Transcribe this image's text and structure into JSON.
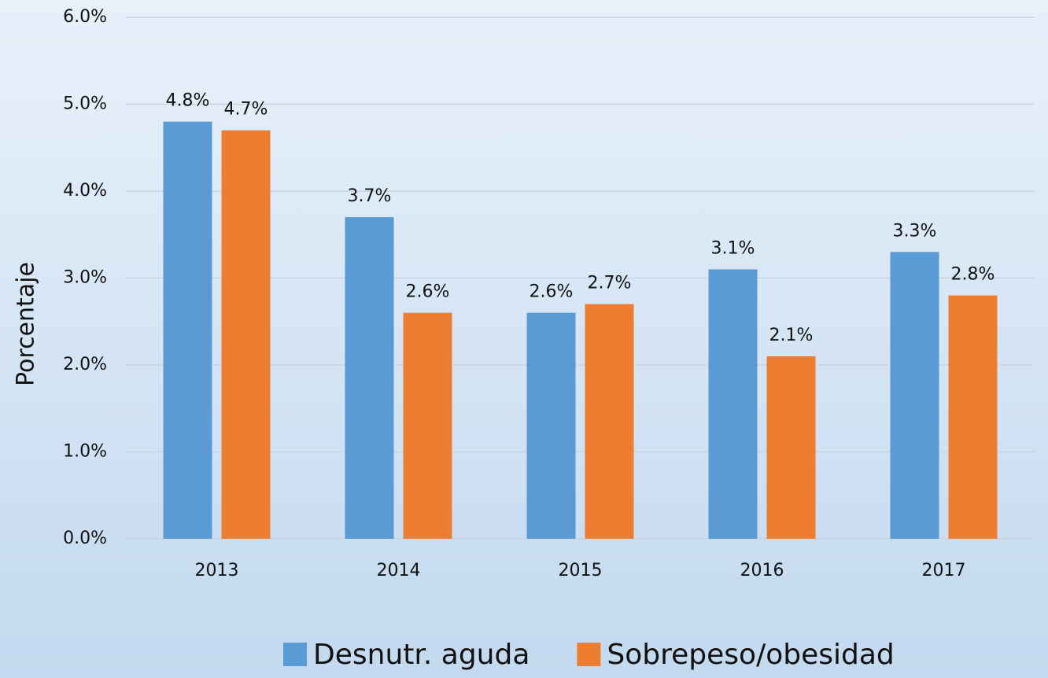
{
  "chart_data": {
    "type": "bar",
    "y_label": "Porcentaje",
    "categories": [
      "2013",
      "2014",
      "2015",
      "2016",
      "2017"
    ],
    "series": [
      {
        "name": "Desnutr. aguda",
        "color": "#5b9bd5",
        "values": [
          4.8,
          3.7,
          2.6,
          3.1,
          3.3
        ],
        "value_labels": [
          "4.8%",
          "3.7%",
          "2.6%",
          "3.1%",
          "3.3%"
        ]
      },
      {
        "name": "Sobrepeso/obesidad",
        "color": "#ed7d31",
        "values": [
          4.7,
          2.6,
          2.7,
          2.1,
          2.8
        ],
        "value_labels": [
          "4.7%",
          "2.6%",
          "2.7%",
          "2.1%",
          "2.8%"
        ]
      }
    ],
    "ylim": [
      0,
      6
    ],
    "yticks": [
      {
        "value": 0,
        "label": "0.0%"
      },
      {
        "value": 1,
        "label": "1.0%"
      },
      {
        "value": 2,
        "label": "2.0%"
      },
      {
        "value": 3,
        "label": "3.0%"
      },
      {
        "value": 4,
        "label": "4.0%"
      },
      {
        "value": 5,
        "label": "5.0%"
      },
      {
        "value": 6,
        "label": "6.0%"
      }
    ],
    "grid": true,
    "legend": "bottom"
  }
}
